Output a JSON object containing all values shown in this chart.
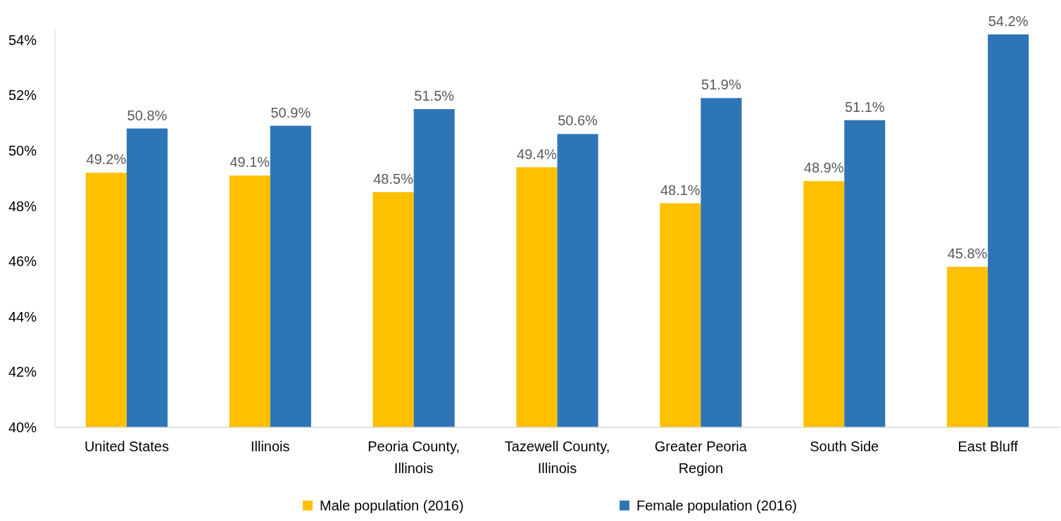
{
  "chart_data": {
    "type": "bar",
    "categories": [
      "United States",
      "Illinois",
      "Peoria County, Illinois",
      "Tazewell County, Illinois",
      "Greater Peoria Region",
      "South Side",
      "East Bluff"
    ],
    "series": [
      {
        "name": "Male population (2016)",
        "color": "#ffc000",
        "values": [
          49.2,
          49.1,
          48.5,
          49.4,
          48.1,
          48.9,
          45.8
        ],
        "value_labels": [
          "49.2%",
          "49.1%",
          "48.5%",
          "49.4%",
          "48.1%",
          "48.9%",
          "45.8%"
        ]
      },
      {
        "name": "Female population (2016)",
        "color": "#2e75b6",
        "values": [
          50.8,
          50.9,
          51.5,
          50.6,
          51.9,
          51.1,
          54.2
        ],
        "value_labels": [
          "50.8%",
          "50.9%",
          "51.5%",
          "50.6%",
          "51.9%",
          "51.1%",
          "54.2%"
        ]
      }
    ],
    "ylim": [
      40,
      54.4
    ],
    "yticks": [
      {
        "value": 40,
        "label": "40%"
      },
      {
        "value": 42,
        "label": "42%"
      },
      {
        "value": 44,
        "label": "44%"
      },
      {
        "value": 46,
        "label": "46%"
      },
      {
        "value": 48,
        "label": "48%"
      },
      {
        "value": 50,
        "label": "50%"
      },
      {
        "value": 52,
        "label": "52%"
      },
      {
        "value": 54,
        "label": "54%"
      }
    ],
    "grid": false,
    "legend": "bottom"
  }
}
